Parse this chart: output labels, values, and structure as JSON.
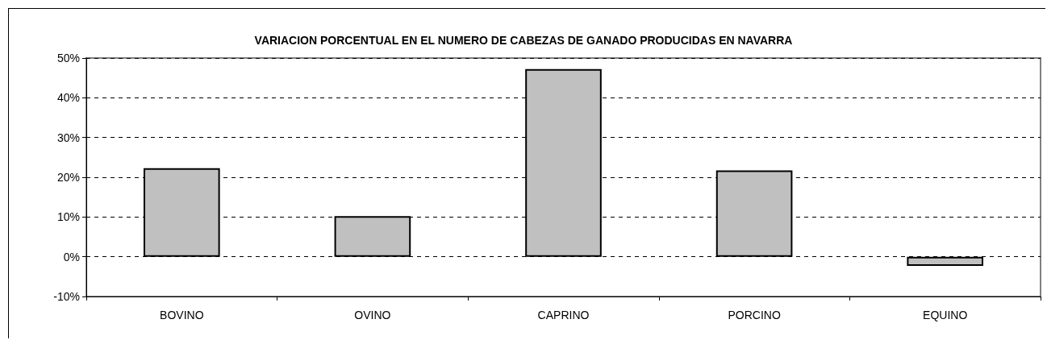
{
  "chart_data": {
    "type": "bar",
    "title": "VARIACION PORCENTUAL EN EL NUMERO DE CABEZAS DE GANADO PRODUCIDAS EN NAVARRA",
    "categories": [
      "BOVINO",
      "OVINO",
      "CAPRINO",
      "PORCINO",
      "EQUINO"
    ],
    "values": [
      22.3,
      10.2,
      47.2,
      21.7,
      -2.3
    ],
    "color": "#c0c0c0",
    "ylim": [
      -10,
      50
    ],
    "yticks": [
      {
        "value": -10,
        "label": "-10%"
      },
      {
        "value": 0,
        "label": "0%"
      },
      {
        "value": 10,
        "label": "10%"
      },
      {
        "value": 20,
        "label": "20%"
      },
      {
        "value": 30,
        "label": "30%"
      },
      {
        "value": 40,
        "label": "40%"
      },
      {
        "value": 50,
        "label": "50%"
      }
    ],
    "grid": "y"
  }
}
